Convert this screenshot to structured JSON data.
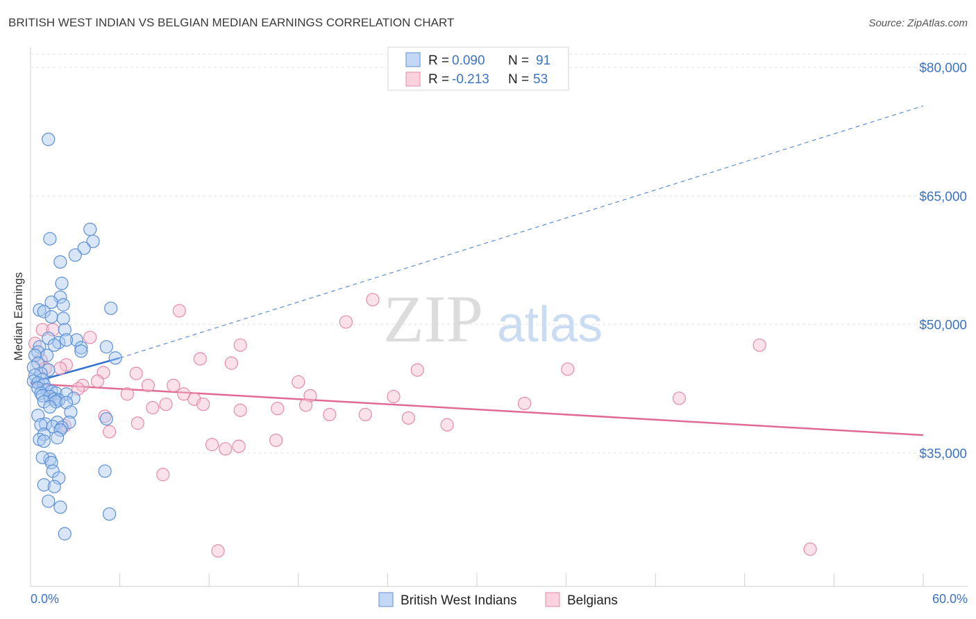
{
  "title": "BRITISH WEST INDIAN VS BELGIAN MEDIAN EARNINGS CORRELATION CHART",
  "source": "Source: ZipAtlas.com",
  "watermark": {
    "zip": "ZIP",
    "atlas": "atlas"
  },
  "colors": {
    "blue_fill": "#a9c8ef",
    "blue_stroke": "#5b8fd6",
    "blue_line": "#2f6fd0",
    "pink_fill": "#f6bfd0",
    "pink_stroke": "#e58aa8",
    "pink_line": "#e06a95",
    "grid": "#e3e3e3",
    "axis_text": "#3b73c4"
  },
  "legend": {
    "rows": [
      {
        "r_label": "R = ",
        "r_value": "0.090",
        "n_label": "N = ",
        "n_value": "91"
      },
      {
        "r_label": "R = ",
        "r_value": "-0.213",
        "n_label": "N = ",
        "n_value": "53"
      }
    ]
  },
  "chart_data": {
    "type": "scatter",
    "title": "BRITISH WEST INDIAN VS BELGIAN MEDIAN EARNINGS CORRELATION CHART",
    "xlabel": "",
    "ylabel": "Median Earnings",
    "xlim": [
      0,
      60
    ],
    "ylim": [
      20000,
      83000
    ],
    "x_tick_labels": [
      "0.0%",
      "60.0%"
    ],
    "y_ticks": [
      35000,
      50000,
      65000,
      80000
    ],
    "y_tick_labels": [
      "$35,000",
      "$50,000",
      "$65,000",
      "$80,000"
    ],
    "grid": true,
    "legend_position": "bottom-center",
    "series": [
      {
        "name": "British West Indians",
        "r": 0.09,
        "n": 91,
        "trend": {
          "x": [
            0,
            6
          ],
          "y": [
            43200,
            46100
          ],
          "dashed_to": [
            60,
            75500
          ]
        },
        "points": [
          [
            1.2,
            71600
          ],
          [
            1.3,
            60000
          ],
          [
            4.0,
            61100
          ],
          [
            4.2,
            59700
          ],
          [
            3.6,
            58900
          ],
          [
            3.0,
            58100
          ],
          [
            2.0,
            57300
          ],
          [
            2.1,
            54800
          ],
          [
            2.0,
            53200
          ],
          [
            1.4,
            52600
          ],
          [
            2.2,
            52300
          ],
          [
            0.6,
            51700
          ],
          [
            0.9,
            51500
          ],
          [
            5.4,
            51900
          ],
          [
            1.4,
            50900
          ],
          [
            2.2,
            50700
          ],
          [
            2.3,
            49400
          ],
          [
            1.2,
            48400
          ],
          [
            3.1,
            48200
          ],
          [
            1.9,
            47900
          ],
          [
            1.6,
            47600
          ],
          [
            2.4,
            48200
          ],
          [
            3.4,
            47300
          ],
          [
            5.1,
            47400
          ],
          [
            0.6,
            47400
          ],
          [
            3.4,
            46900
          ],
          [
            0.5,
            46800
          ],
          [
            0.3,
            46400
          ],
          [
            1.1,
            46400
          ],
          [
            5.7,
            46100
          ],
          [
            0.5,
            45500
          ],
          [
            0.2,
            45000
          ],
          [
            1.2,
            44700
          ],
          [
            0.7,
            44300
          ],
          [
            0.3,
            44100
          ],
          [
            0.8,
            43600
          ],
          [
            0.2,
            43400
          ],
          [
            0.5,
            43200
          ],
          [
            0.9,
            43000
          ],
          [
            0.5,
            42600
          ],
          [
            1.1,
            42400
          ],
          [
            1.4,
            42200
          ],
          [
            0.7,
            42000
          ],
          [
            1.7,
            42000
          ],
          [
            2.4,
            41900
          ],
          [
            0.8,
            41700
          ],
          [
            1.3,
            41600
          ],
          [
            2.9,
            41400
          ],
          [
            1.6,
            41300
          ],
          [
            1.9,
            41200
          ],
          [
            0.9,
            41000
          ],
          [
            1.7,
            41000
          ],
          [
            2.4,
            40900
          ],
          [
            1.3,
            40400
          ],
          [
            2.7,
            39800
          ],
          [
            0.5,
            39400
          ],
          [
            5.1,
            39000
          ],
          [
            2.6,
            38600
          ],
          [
            1.8,
            38600
          ],
          [
            1.0,
            38400
          ],
          [
            0.7,
            38300
          ],
          [
            1.5,
            38100
          ],
          [
            2.1,
            38000
          ],
          [
            2.0,
            37700
          ],
          [
            0.9,
            37200
          ],
          [
            1.8,
            36800
          ],
          [
            0.6,
            36600
          ],
          [
            0.9,
            36400
          ],
          [
            1.3,
            34300
          ],
          [
            0.8,
            34500
          ],
          [
            1.4,
            33900
          ],
          [
            5.0,
            32900
          ],
          [
            1.5,
            32900
          ],
          [
            1.9,
            32100
          ],
          [
            0.9,
            31300
          ],
          [
            1.6,
            31100
          ],
          [
            1.2,
            29400
          ],
          [
            2.0,
            28700
          ],
          [
            5.3,
            27900
          ],
          [
            2.3,
            25600
          ]
        ]
      },
      {
        "name": "Belgians",
        "r": -0.213,
        "n": 53,
        "trend": {
          "x": [
            0,
            60
          ],
          "y": [
            43100,
            37100
          ]
        },
        "points": [
          [
            23.0,
            52900
          ],
          [
            10.0,
            51600
          ],
          [
            21.2,
            50300
          ],
          [
            0.8,
            49400
          ],
          [
            1.5,
            49400
          ],
          [
            4.0,
            48500
          ],
          [
            0.3,
            47800
          ],
          [
            14.1,
            47600
          ],
          [
            49.0,
            47600
          ],
          [
            11.4,
            46000
          ],
          [
            13.5,
            45500
          ],
          [
            2.4,
            45300
          ],
          [
            2.0,
            44900
          ],
          [
            36.1,
            44800
          ],
          [
            26.0,
            44700
          ],
          [
            4.9,
            44400
          ],
          [
            7.1,
            44300
          ],
          [
            4.5,
            43400
          ],
          [
            18.0,
            43300
          ],
          [
            3.5,
            42900
          ],
          [
            7.9,
            42900
          ],
          [
            9.6,
            42900
          ],
          [
            3.2,
            42500
          ],
          [
            6.5,
            41900
          ],
          [
            10.3,
            41900
          ],
          [
            18.8,
            41700
          ],
          [
            24.4,
            41600
          ],
          [
            43.6,
            41400
          ],
          [
            11.0,
            41300
          ],
          [
            9.1,
            40700
          ],
          [
            11.6,
            40700
          ],
          [
            18.5,
            40600
          ],
          [
            33.2,
            40800
          ],
          [
            8.2,
            40300
          ],
          [
            16.6,
            40200
          ],
          [
            14.1,
            40000
          ],
          [
            20.1,
            39500
          ],
          [
            22.5,
            39500
          ],
          [
            25.4,
            39100
          ],
          [
            5.0,
            39300
          ],
          [
            7.2,
            38500
          ],
          [
            28.0,
            38300
          ],
          [
            5.3,
            37500
          ],
          [
            2.3,
            38200
          ],
          [
            16.5,
            36500
          ],
          [
            12.2,
            36000
          ],
          [
            14.0,
            35800
          ],
          [
            13.1,
            35500
          ],
          [
            8.9,
            32500
          ],
          [
            12.6,
            23600
          ],
          [
            52.4,
            23800
          ],
          [
            0.7,
            45900
          ],
          [
            1.0,
            44900
          ]
        ]
      }
    ]
  }
}
